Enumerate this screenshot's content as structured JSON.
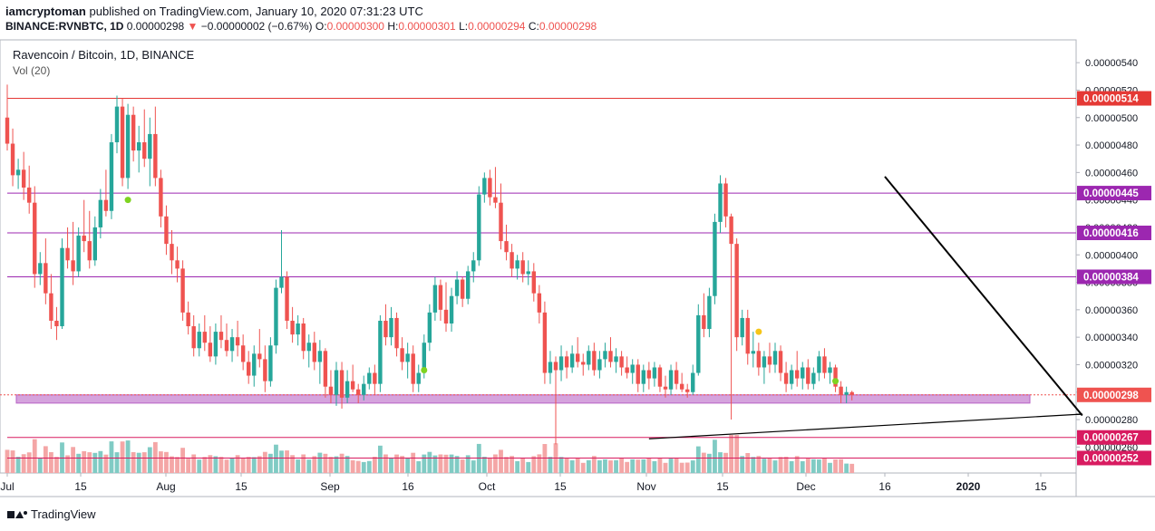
{
  "header": {
    "author": "iamcryptoman",
    "published_text": "published on TradingView.com, January 10, 2020 07:31:23 UTC",
    "symbol": "BINANCE:RVNBTC, 1D",
    "last_price": "0.00000298",
    "change_arrow": "▼",
    "change": "−0.00000002 (−0.67%)",
    "o_label": "O:",
    "o_value": "0.00000300",
    "h_label": "H:",
    "h_value": "0.00000301",
    "l_label": "L:",
    "l_value": "0.00000294",
    "c_label": "C:",
    "c_value": "0.00000298"
  },
  "legend": {
    "title": "Ravencoin / Bitcoin, 1D, BINANCE",
    "volume": "Vol (20)"
  },
  "footer": {
    "brand": "TradingView"
  },
  "colors": {
    "up": "#26a69a",
    "down": "#ef5350",
    "up_vol": "#80cbc4",
    "down_vol": "#f4a6a6",
    "resistance_red": "#e53935",
    "level_purple": "#9c27b0",
    "zone_fill": "#ce93d8",
    "dot_green": "#7ed321",
    "dot_yellow": "#f5c518"
  },
  "chart_data": {
    "type": "candlestick",
    "price_axis_ticks": [
      "0.00000540",
      "0.00000520",
      "0.00000500",
      "0.00000480",
      "0.00000460",
      "0.00000440",
      "0.00000420",
      "0.00000400",
      "0.00000380",
      "0.00000360",
      "0.00000340",
      "0.00000320",
      "0.00000300",
      "0.00000280",
      "0.00000260"
    ],
    "ylim": [
      2.5e-06,
      5.5e-06
    ],
    "x_axis_ticks": [
      "Jul",
      "15",
      "Aug",
      "15",
      "Sep",
      "16",
      "Oct",
      "15",
      "Nov",
      "15",
      "Dec",
      "16",
      "2020",
      "15"
    ],
    "horizontal_levels": [
      {
        "value": "0.00000514",
        "color": "#e53935"
      },
      {
        "value": "0.00000445",
        "color": "#9c27b0"
      },
      {
        "value": "0.00000416",
        "color": "#9c27b0"
      },
      {
        "value": "0.00000384",
        "color": "#9c27b0"
      },
      {
        "value": "0.00000298",
        "color": "#ef5350"
      },
      {
        "value": "0.00000267",
        "color": "#d81b60"
      },
      {
        "value": "0.00000252",
        "color": "#d81b60"
      }
    ],
    "support_zone": [
      2.92e-06,
      2.98e-06
    ],
    "trendlines": [
      {
        "from": [
          "2019-12-08",
          4.57e-06
        ],
        "to": [
          "2020-01-13",
          2.83e-06
        ]
      },
      {
        "from": [
          "2019-10-26",
          2.66e-06
        ],
        "to": [
          "2020-01-13",
          2.84e-06
        ]
      }
    ],
    "start_date": "2019-07-01",
    "ohlc": [
      [
        500,
        524,
        476,
        481
      ],
      [
        481,
        492,
        450,
        458
      ],
      [
        458,
        470,
        448,
        462
      ],
      [
        462,
        475,
        440,
        449
      ],
      [
        449,
        465,
        430,
        438
      ],
      [
        438,
        450,
        376,
        386
      ],
      [
        386,
        402,
        378,
        394
      ],
      [
        394,
        412,
        364,
        372
      ],
      [
        372,
        386,
        346,
        352
      ],
      [
        352,
        362,
        338,
        348
      ],
      [
        348,
        412,
        346,
        405
      ],
      [
        405,
        420,
        390,
        396
      ],
      [
        396,
        424,
        378,
        388
      ],
      [
        388,
        420,
        384,
        414
      ],
      [
        414,
        440,
        402,
        410
      ],
      [
        410,
        432,
        390,
        396
      ],
      [
        396,
        428,
        392,
        420
      ],
      [
        420,
        448,
        412,
        440
      ],
      [
        440,
        462,
        428,
        432
      ],
      [
        432,
        488,
        426,
        482
      ],
      [
        482,
        516,
        474,
        508
      ],
      [
        508,
        514,
        450,
        456
      ],
      [
        456,
        510,
        448,
        502
      ],
      [
        502,
        508,
        468,
        476
      ],
      [
        476,
        494,
        460,
        482
      ],
      [
        482,
        506,
        464,
        470
      ],
      [
        470,
        500,
        450,
        488
      ],
      [
        488,
        508,
        450,
        456
      ],
      [
        456,
        462,
        420,
        428
      ],
      [
        428,
        436,
        400,
        408
      ],
      [
        408,
        418,
        386,
        396
      ],
      [
        396,
        406,
        380,
        390
      ],
      [
        390,
        396,
        352,
        358
      ],
      [
        358,
        366,
        342,
        348
      ],
      [
        348,
        356,
        326,
        332
      ],
      [
        332,
        350,
        326,
        344
      ],
      [
        344,
        356,
        330,
        336
      ],
      [
        336,
        348,
        322,
        326
      ],
      [
        326,
        350,
        320,
        344
      ],
      [
        344,
        356,
        332,
        338
      ],
      [
        338,
        350,
        326,
        330
      ],
      [
        330,
        346,
        322,
        340
      ],
      [
        340,
        352,
        326,
        334
      ],
      [
        334,
        342,
        316,
        322
      ],
      [
        322,
        330,
        306,
        312
      ],
      [
        312,
        334,
        304,
        328
      ],
      [
        328,
        346,
        318,
        324
      ],
      [
        324,
        334,
        300,
        308
      ],
      [
        308,
        340,
        304,
        334
      ],
      [
        334,
        382,
        328,
        376
      ],
      [
        376,
        418,
        372,
        384
      ],
      [
        384,
        388,
        346,
        352
      ],
      [
        352,
        362,
        336,
        342
      ],
      [
        342,
        356,
        334,
        350
      ],
      [
        350,
        354,
        324,
        330
      ],
      [
        330,
        342,
        318,
        336
      ],
      [
        336,
        344,
        316,
        322
      ],
      [
        322,
        338,
        306,
        330
      ],
      [
        330,
        332,
        296,
        304
      ],
      [
        304,
        316,
        292,
        298
      ],
      [
        298,
        322,
        290,
        316
      ],
      [
        316,
        322,
        288,
        296
      ],
      [
        296,
        316,
        292,
        308
      ],
      [
        308,
        320,
        300,
        302
      ],
      [
        302,
        306,
        292,
        298
      ],
      [
        298,
        312,
        294,
        306
      ],
      [
        306,
        318,
        302,
        314
      ],
      [
        314,
        320,
        298,
        306
      ],
      [
        306,
        356,
        300,
        352
      ],
      [
        352,
        364,
        334,
        340
      ],
      [
        340,
        362,
        334,
        354
      ],
      [
        354,
        358,
        326,
        332
      ],
      [
        332,
        340,
        316,
        322
      ],
      [
        322,
        336,
        310,
        328
      ],
      [
        328,
        334,
        300,
        306
      ],
      [
        306,
        320,
        300,
        314
      ],
      [
        314,
        342,
        310,
        336
      ],
      [
        336,
        364,
        330,
        358
      ],
      [
        358,
        384,
        352,
        378
      ],
      [
        378,
        382,
        352,
        360
      ],
      [
        360,
        380,
        344,
        350
      ],
      [
        350,
        376,
        344,
        370
      ],
      [
        370,
        388,
        364,
        382
      ],
      [
        382,
        384,
        362,
        368
      ],
      [
        368,
        392,
        364,
        388
      ],
      [
        388,
        402,
        380,
        396
      ],
      [
        396,
        450,
        392,
        444
      ],
      [
        444,
        460,
        438,
        456
      ],
      [
        456,
        462,
        436,
        442
      ],
      [
        442,
        464,
        434,
        438
      ],
      [
        438,
        452,
        404,
        410
      ],
      [
        410,
        422,
        396,
        402
      ],
      [
        402,
        408,
        384,
        390
      ],
      [
        390,
        400,
        382,
        396
      ],
      [
        396,
        402,
        380,
        386
      ],
      [
        386,
        396,
        378,
        388
      ],
      [
        388,
        394,
        366,
        372
      ],
      [
        372,
        378,
        350,
        358
      ],
      [
        358,
        366,
        306,
        314
      ],
      [
        314,
        330,
        306,
        322
      ],
      [
        322,
        326,
        262,
        316
      ],
      [
        316,
        334,
        308,
        326
      ],
      [
        326,
        330,
        310,
        318
      ],
      [
        318,
        334,
        314,
        328
      ],
      [
        328,
        340,
        318,
        322
      ],
      [
        322,
        328,
        312,
        320
      ],
      [
        320,
        334,
        316,
        330
      ],
      [
        330,
        336,
        312,
        316
      ],
      [
        316,
        330,
        310,
        324
      ],
      [
        324,
        336,
        318,
        330
      ],
      [
        330,
        340,
        318,
        322
      ],
      [
        322,
        332,
        314,
        326
      ],
      [
        326,
        330,
        312,
        318
      ],
      [
        318,
        326,
        310,
        314
      ],
      [
        314,
        324,
        306,
        320
      ],
      [
        320,
        324,
        300,
        306
      ],
      [
        306,
        320,
        300,
        316
      ],
      [
        316,
        322,
        302,
        310
      ],
      [
        310,
        322,
        304,
        318
      ],
      [
        318,
        320,
        300,
        304
      ],
      [
        304,
        312,
        296,
        302
      ],
      [
        302,
        320,
        298,
        316
      ],
      [
        316,
        322,
        302,
        306
      ],
      [
        306,
        314,
        300,
        302
      ],
      [
        302,
        306,
        296,
        300
      ],
      [
        300,
        320,
        298,
        314
      ],
      [
        314,
        364,
        312,
        356
      ],
      [
        356,
        372,
        340,
        346
      ],
      [
        346,
        376,
        340,
        370
      ],
      [
        370,
        430,
        364,
        424
      ],
      [
        424,
        458,
        416,
        452
      ],
      [
        452,
        456,
        420,
        428
      ],
      [
        428,
        430,
        280,
        408
      ],
      [
        408,
        412,
        330,
        340
      ],
      [
        340,
        360,
        334,
        354
      ],
      [
        354,
        360,
        320,
        328
      ],
      [
        328,
        344,
        318,
        330
      ],
      [
        330,
        336,
        312,
        318
      ],
      [
        318,
        330,
        306,
        326
      ],
      [
        326,
        336,
        314,
        320
      ],
      [
        320,
        336,
        314,
        330
      ],
      [
        330,
        334,
        308,
        314
      ],
      [
        314,
        322,
        300,
        306
      ],
      [
        306,
        320,
        302,
        316
      ],
      [
        316,
        330,
        304,
        310
      ],
      [
        310,
        322,
        302,
        318
      ],
      [
        318,
        324,
        302,
        306
      ],
      [
        306,
        318,
        302,
        314
      ],
      [
        314,
        330,
        308,
        326
      ],
      [
        326,
        332,
        310,
        314
      ],
      [
        314,
        322,
        306,
        318
      ],
      [
        318,
        320,
        300,
        304
      ],
      [
        304,
        308,
        292,
        298
      ],
      [
        298,
        304,
        292,
        300
      ],
      [
        300,
        301,
        294,
        298
      ]
    ],
    "dots": [
      {
        "day": 22,
        "price": 4.4e-06,
        "color": "green"
      },
      {
        "day": 76,
        "price": 3.16e-06,
        "color": "green"
      },
      {
        "day": 137,
        "price": 3.44e-06,
        "color": "yellow"
      },
      {
        "day": 151,
        "price": 3.08e-06,
        "color": "green"
      }
    ]
  }
}
